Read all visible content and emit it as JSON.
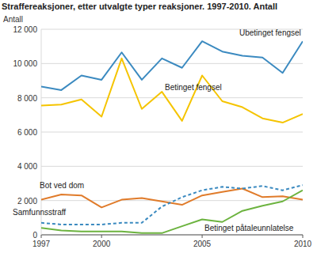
{
  "chart_data": {
    "type": "line",
    "title": "Straffereaksjoner, etter utvalgte typer reaksjoner. 1997-2010. Antall",
    "y_label": "Antall",
    "x": [
      1997,
      1998,
      1999,
      2000,
      2001,
      2002,
      2003,
      2004,
      2005,
      2006,
      2007,
      2008,
      2009,
      2010
    ],
    "xlim": [
      1997,
      2010
    ],
    "xticks": [
      1997,
      2000,
      2005,
      2010
    ],
    "ylim": [
      0,
      12000
    ],
    "yticks": [
      0,
      {
        "value": 2000,
        "label": "2 000"
      },
      {
        "value": 4000,
        "label": "4 000"
      },
      {
        "value": 6000,
        "label": "6 000"
      },
      {
        "value": 8000,
        "label": "8 000"
      },
      {
        "value": 10000,
        "label": "10 000"
      },
      {
        "value": 12000,
        "label": "12 000"
      }
    ],
    "grid": true,
    "series": [
      {
        "name": "Ubetinget fengsel",
        "color": "#3b8ac0",
        "line_style": "solid",
        "values": [
          8650,
          8450,
          9300,
          9050,
          10650,
          9050,
          10300,
          9750,
          11300,
          10700,
          10450,
          10350,
          9450,
          11300
        ]
      },
      {
        "name": "Betinget fengsel",
        "color": "#f5c400",
        "line_style": "solid",
        "values": [
          7550,
          7600,
          7900,
          6900,
          10300,
          7350,
          8350,
          6650,
          9300,
          7800,
          7450,
          6800,
          6550,
          7050
        ]
      },
      {
        "name": "Bot ved dom",
        "color": "#e07b2a",
        "line_style": "solid",
        "values": [
          2050,
          2350,
          2300,
          1600,
          2050,
          2150,
          1950,
          1750,
          2300,
          2500,
          2700,
          2200,
          2250,
          2050
        ]
      },
      {
        "name": "Samfunnsstraff",
        "color": "#3b8ac0",
        "line_style": "dashed",
        "values": [
          700,
          600,
          600,
          600,
          700,
          700,
          1650,
          2200,
          2600,
          2800,
          2700,
          2850,
          2600,
          2900
        ]
      },
      {
        "name": "Betinget påtaleunnlatelse",
        "color": "#6cb33f",
        "line_style": "solid",
        "values": [
          400,
          250,
          200,
          200,
          200,
          100,
          100,
          500,
          900,
          750,
          1400,
          1700,
          1950,
          2600
        ]
      }
    ]
  }
}
